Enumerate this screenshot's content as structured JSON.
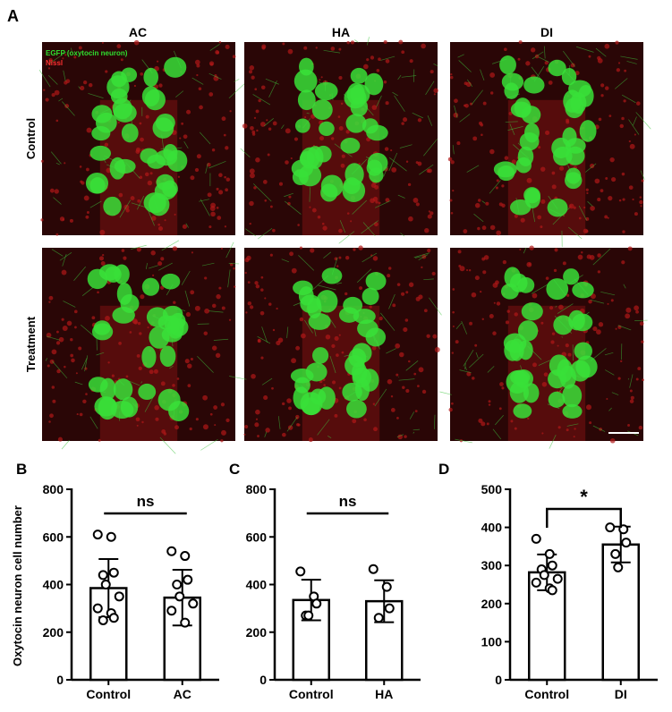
{
  "figure": {
    "panel_a": "A",
    "columns": [
      "AC",
      "HA",
      "DI"
    ],
    "rows": [
      "Control",
      "Treatment"
    ],
    "legend": [
      "EGFP (oxytocin neuron)",
      "Nissl"
    ]
  },
  "chart_data": [
    {
      "type": "bar",
      "panel": "B",
      "ylabel": "Oxytocin neuron cell number",
      "categories": [
        "Control",
        "AC"
      ],
      "values": [
        385,
        345
      ],
      "errors": [
        122,
        117
      ],
      "points": [
        [
          610,
          600,
          450,
          440,
          400,
          350,
          300,
          280,
          260,
          250
        ],
        [
          540,
          520,
          420,
          400,
          350,
          320,
          290,
          240
        ]
      ],
      "ylim": [
        0,
        800
      ],
      "yticks": [
        0,
        200,
        400,
        600,
        800
      ],
      "annotation": "ns"
    },
    {
      "type": "bar",
      "panel": "C",
      "categories": [
        "Control",
        "HA"
      ],
      "values": [
        335,
        330
      ],
      "errors": [
        85,
        88
      ],
      "points": [
        [
          455,
          350,
          320,
          270,
          270
        ],
        [
          465,
          390,
          300,
          260
        ]
      ],
      "ylim": [
        0,
        800
      ],
      "yticks": [
        0,
        200,
        400,
        600,
        800
      ],
      "annotation": "ns"
    },
    {
      "type": "bar",
      "panel": "D",
      "categories": [
        "Control",
        "DI"
      ],
      "values": [
        282,
        355
      ],
      "errors": [
        47,
        47
      ],
      "points": [
        [
          370,
          330,
          300,
          290,
          275,
          265,
          255,
          240,
          235
        ],
        [
          400,
          395,
          360,
          330,
          295
        ]
      ],
      "ylim": [
        0,
        500
      ],
      "yticks": [
        0,
        100,
        200,
        300,
        400,
        500
      ],
      "annotation": "*"
    }
  ]
}
